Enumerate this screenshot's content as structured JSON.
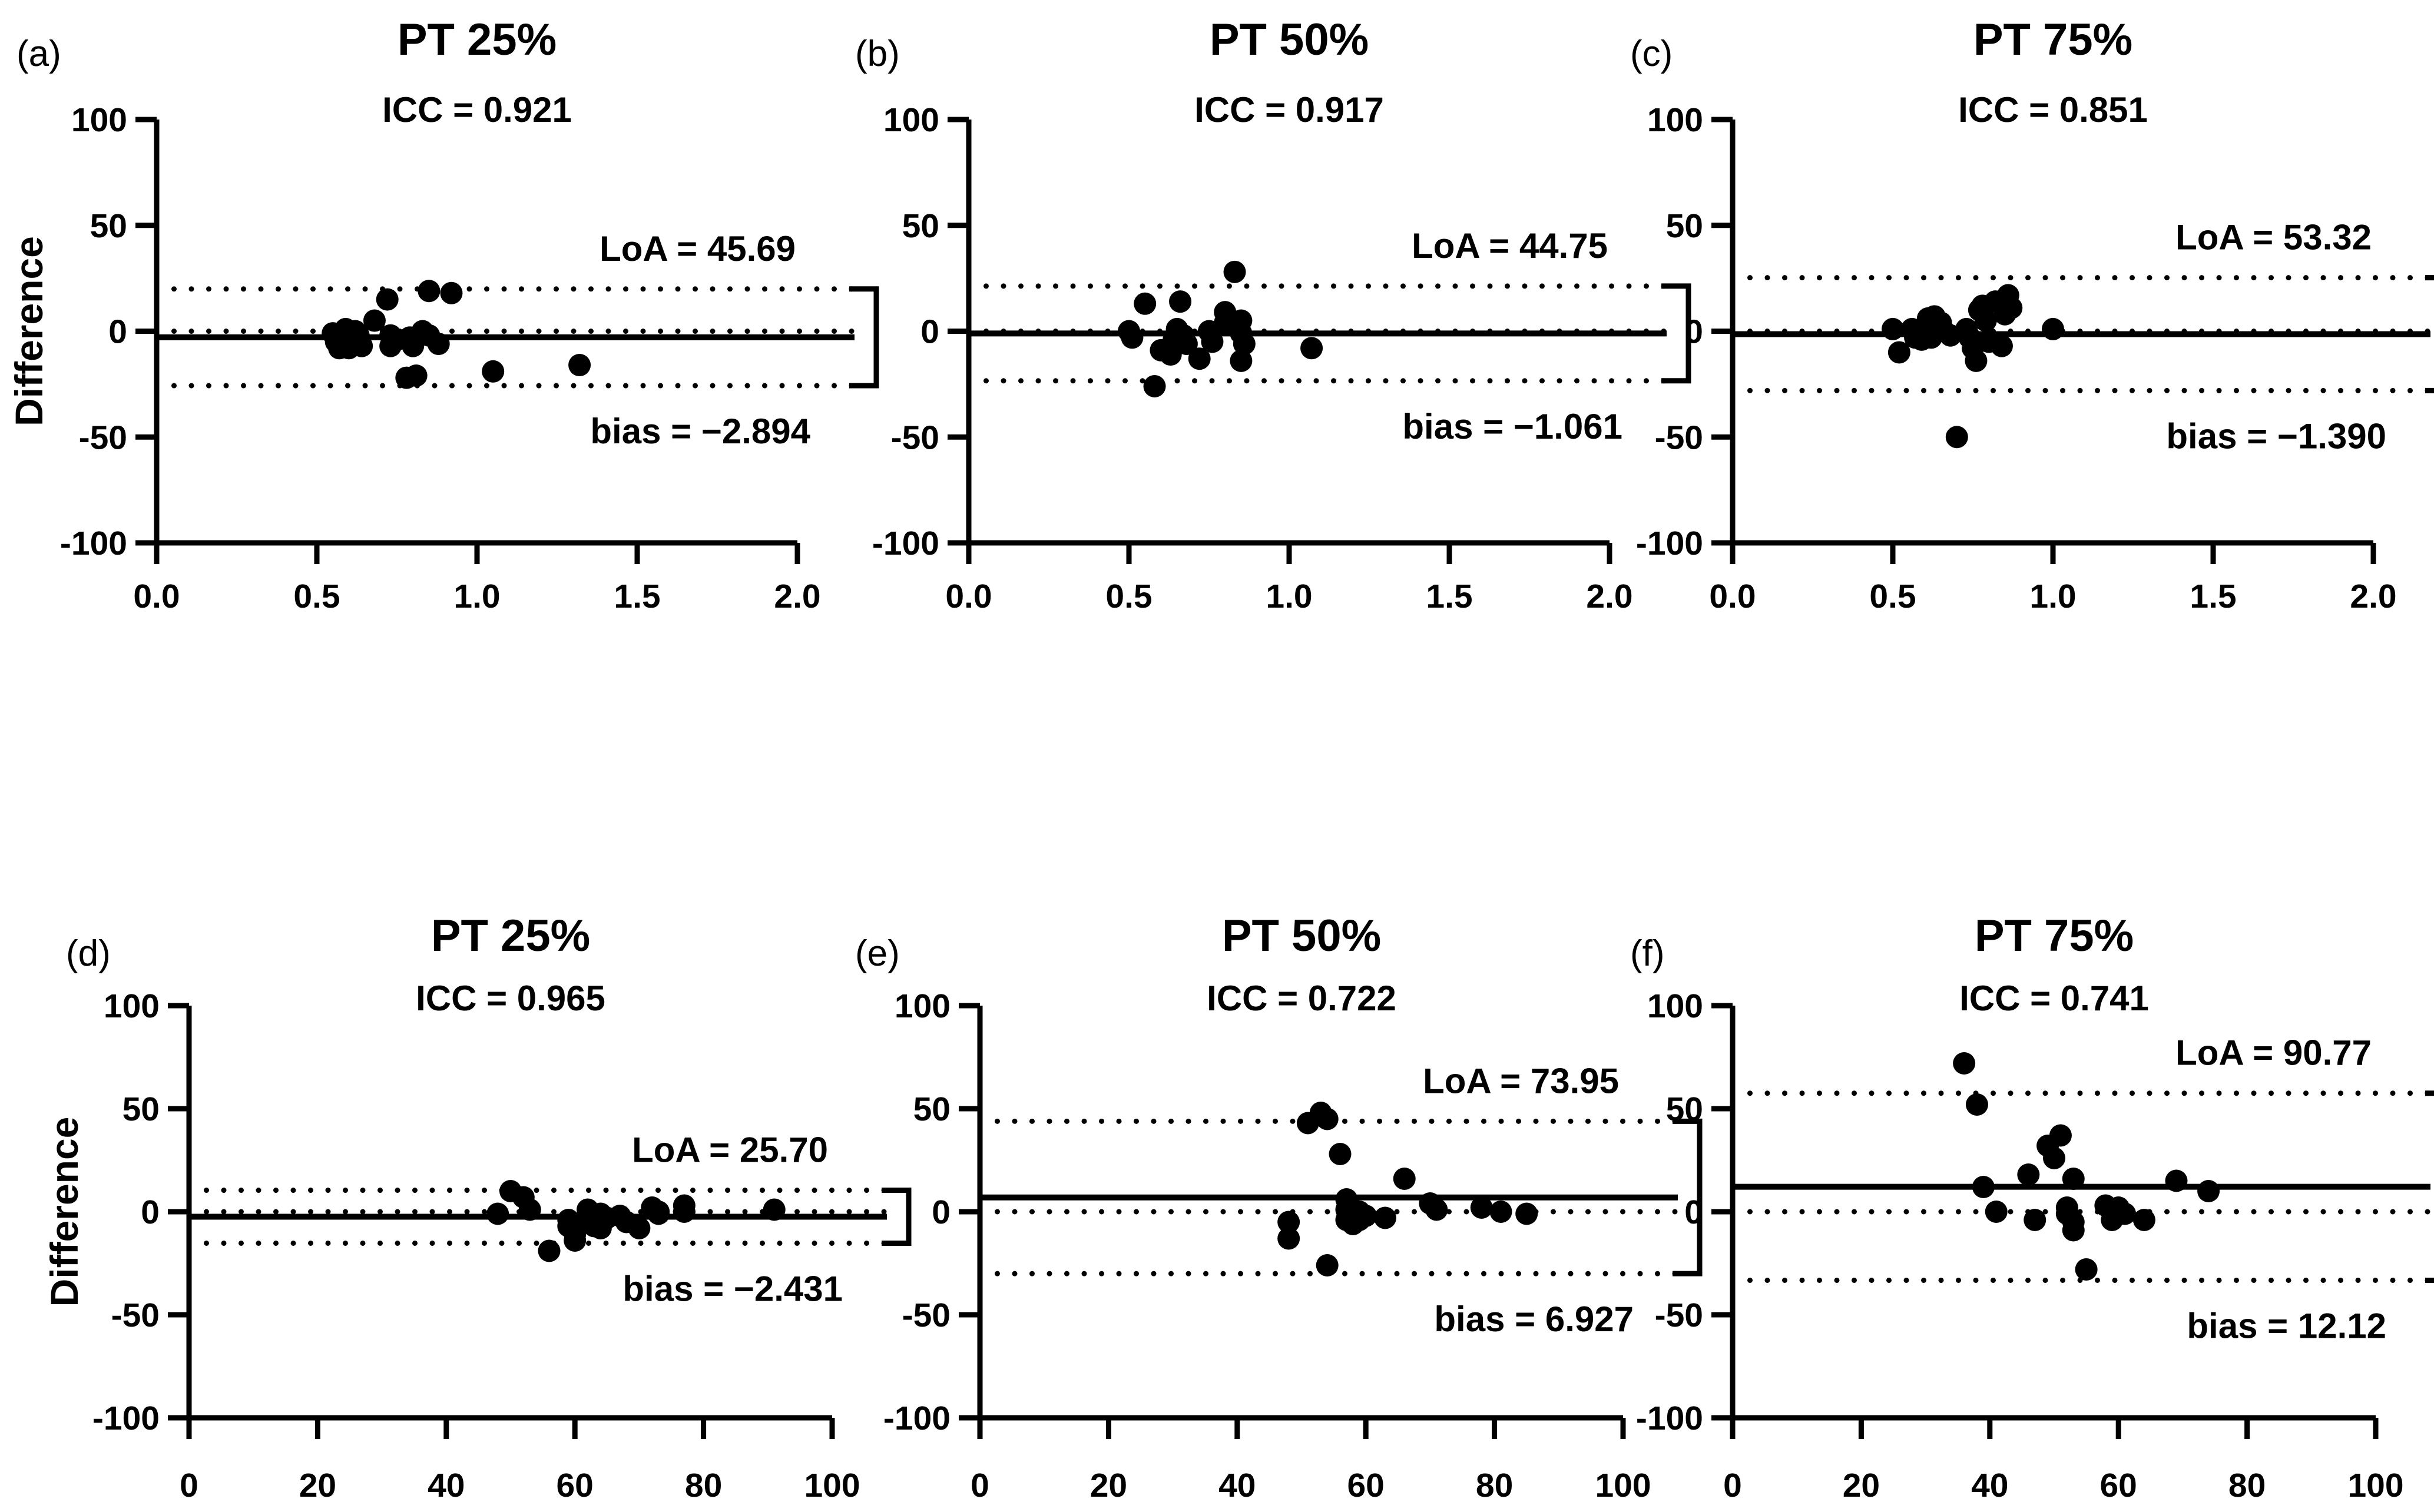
{
  "figure": {
    "background": "#ffffff",
    "ink": "#000000",
    "ylabel": "Difference"
  },
  "chart_data": [
    {
      "type": "scatter",
      "panel_label": "(a)",
      "title": "PT 25%",
      "icc_text": "ICC = 0.921",
      "loa_text": "LoA = 45.69",
      "bias_text": "bias = −2.894",
      "row": 0,
      "col": 0,
      "xlim": [
        0.0,
        2.0
      ],
      "ylim": [
        -100,
        100
      ],
      "x_ticks": [
        "0.0",
        "0.5",
        "1.0",
        "1.5",
        "2.0"
      ],
      "y_ticks": [
        "100",
        "50",
        "0",
        "-50",
        "-100"
      ],
      "ylabel": "Difference",
      "show_ylabel": true,
      "bias_value": -2.894,
      "upper_loa": 19.95,
      "lower_loa": -25.74,
      "zero_line": 0,
      "points": [
        [
          0.55,
          -1
        ],
        [
          0.56,
          -5
        ],
        [
          0.57,
          -8
        ],
        [
          0.59,
          1
        ],
        [
          0.6,
          -3
        ],
        [
          0.6,
          -8
        ],
        [
          0.62,
          0
        ],
        [
          0.63,
          -2
        ],
        [
          0.64,
          -7
        ],
        [
          0.68,
          5
        ],
        [
          0.72,
          15
        ],
        [
          0.73,
          -2
        ],
        [
          0.73,
          -7
        ],
        [
          0.75,
          -4
        ],
        [
          0.78,
          -22
        ],
        [
          0.81,
          -21
        ],
        [
          0.79,
          -3
        ],
        [
          0.8,
          -7
        ],
        [
          0.83,
          0
        ],
        [
          0.85,
          19
        ],
        [
          0.85,
          -2
        ],
        [
          0.88,
          -6
        ],
        [
          0.92,
          18
        ],
        [
          1.05,
          -19
        ],
        [
          1.32,
          -16
        ]
      ]
    },
    {
      "type": "scatter",
      "panel_label": "(b)",
      "title": "PT 50%",
      "icc_text": "ICC = 0.917",
      "loa_text": "LoA = 44.75",
      "bias_text": "bias = −1.061",
      "row": 0,
      "col": 1,
      "xlim": [
        0.0,
        2.0
      ],
      "ylim": [
        -100,
        100
      ],
      "x_ticks": [
        "0.0",
        "0.5",
        "1.0",
        "1.5",
        "2.0"
      ],
      "y_ticks": [
        "100",
        "50",
        "0",
        "-50",
        "-100"
      ],
      "ylabel": "",
      "show_ylabel": false,
      "bias_value": -1.061,
      "upper_loa": 21.31,
      "lower_loa": -23.44,
      "zero_line": 0,
      "points": [
        [
          0.5,
          0
        ],
        [
          0.51,
          -3
        ],
        [
          0.55,
          13
        ],
        [
          0.58,
          -26
        ],
        [
          0.6,
          -9
        ],
        [
          0.63,
          -11
        ],
        [
          0.64,
          -4
        ],
        [
          0.65,
          1
        ],
        [
          0.66,
          14
        ],
        [
          0.67,
          -2
        ],
        [
          0.68,
          -6
        ],
        [
          0.72,
          -13
        ],
        [
          0.75,
          0
        ],
        [
          0.76,
          -5
        ],
        [
          0.8,
          9
        ],
        [
          0.8,
          4
        ],
        [
          0.83,
          28
        ],
        [
          0.85,
          5
        ],
        [
          0.85,
          -1
        ],
        [
          0.85,
          -14
        ],
        [
          0.86,
          -6
        ],
        [
          1.07,
          -8
        ]
      ]
    },
    {
      "type": "scatter",
      "panel_label": "(c)",
      "title": "PT 75%",
      "icc_text": "ICC = 0.851",
      "loa_text": "LoA = 53.32",
      "bias_text": "bias = −1.390",
      "row": 0,
      "col": 2,
      "xlim": [
        0.0,
        2.0
      ],
      "ylim": [
        -100,
        100
      ],
      "x_ticks": [
        "0.0",
        "0.5",
        "1.0",
        "1.5",
        "2.0"
      ],
      "y_ticks": [
        "100",
        "50",
        "0",
        "-50",
        "-100"
      ],
      "ylabel": "",
      "show_ylabel": false,
      "bias_value": -1.39,
      "upper_loa": 25.27,
      "lower_loa": -28.05,
      "zero_line": 0,
      "points": [
        [
          0.5,
          1
        ],
        [
          0.52,
          -10
        ],
        [
          0.56,
          1
        ],
        [
          0.57,
          -3
        ],
        [
          0.59,
          -4
        ],
        [
          0.61,
          6
        ],
        [
          0.62,
          -3
        ],
        [
          0.63,
          7
        ],
        [
          0.65,
          4
        ],
        [
          0.66,
          0
        ],
        [
          0.68,
          -2
        ],
        [
          0.7,
          -50
        ],
        [
          0.73,
          1
        ],
        [
          0.74,
          -3
        ],
        [
          0.75,
          -8
        ],
        [
          0.76,
          -14
        ],
        [
          0.77,
          10
        ],
        [
          0.78,
          12
        ],
        [
          0.79,
          5
        ],
        [
          0.8,
          -5
        ],
        [
          0.82,
          14
        ],
        [
          0.84,
          -7
        ],
        [
          0.85,
          8
        ],
        [
          0.86,
          17
        ],
        [
          0.87,
          11
        ],
        [
          1.0,
          1
        ]
      ]
    },
    {
      "type": "scatter",
      "panel_label": "(d)",
      "title": "PT 25%",
      "icc_text": "ICC = 0.965",
      "loa_text": "LoA = 25.70",
      "bias_text": "bias = −2.431",
      "row": 1,
      "col": 0,
      "xlim": [
        0,
        100
      ],
      "ylim": [
        -100,
        100
      ],
      "x_ticks": [
        "0",
        "20",
        "40",
        "60",
        "80",
        "100"
      ],
      "y_ticks": [
        "100",
        "50",
        "0",
        "-50",
        "-100"
      ],
      "ylabel": "Difference",
      "show_ylabel": true,
      "bias_value": -2.431,
      "upper_loa": 10.42,
      "lower_loa": -15.28,
      "zero_line": 0,
      "points": [
        [
          48,
          -1
        ],
        [
          50,
          10
        ],
        [
          52,
          7
        ],
        [
          53,
          1
        ],
        [
          56,
          -19
        ],
        [
          59,
          -7
        ],
        [
          59,
          -4
        ],
        [
          60,
          -11
        ],
        [
          60,
          -14
        ],
        [
          62,
          1
        ],
        [
          62,
          -3
        ],
        [
          63,
          -7
        ],
        [
          64,
          -8
        ],
        [
          64,
          -1
        ],
        [
          65,
          -3
        ],
        [
          67,
          -2
        ],
        [
          68,
          -5
        ],
        [
          70,
          -8
        ],
        [
          72,
          2
        ],
        [
          73,
          0
        ],
        [
          73,
          -1
        ],
        [
          77,
          3
        ],
        [
          77,
          0
        ],
        [
          91,
          1
        ]
      ]
    },
    {
      "type": "scatter",
      "panel_label": "(e)",
      "title": "PT 50%",
      "icc_text": "ICC = 0.722",
      "loa_text": "LoA = 73.95",
      "bias_text": "bias = 6.927",
      "row": 1,
      "col": 1,
      "xlim": [
        0,
        100
      ],
      "ylim": [
        -100,
        100
      ],
      "x_ticks": [
        "0",
        "20",
        "40",
        "60",
        "80",
        "100"
      ],
      "y_ticks": [
        "100",
        "50",
        "0",
        "-50",
        "-100"
      ],
      "ylabel": "",
      "show_ylabel": false,
      "bias_value": 6.927,
      "upper_loa": 43.9,
      "lower_loa": -30.05,
      "zero_line": 0,
      "points": [
        [
          48,
          -5
        ],
        [
          48,
          -13
        ],
        [
          51,
          43
        ],
        [
          53,
          48
        ],
        [
          54,
          45
        ],
        [
          54,
          -26
        ],
        [
          56,
          28
        ],
        [
          57,
          6
        ],
        [
          57,
          1
        ],
        [
          57,
          -4
        ],
        [
          58,
          -6
        ],
        [
          58,
          1
        ],
        [
          59,
          0
        ],
        [
          59,
          -4
        ],
        [
          60,
          -2
        ],
        [
          63,
          -3
        ],
        [
          66,
          16
        ],
        [
          70,
          4
        ],
        [
          71,
          1
        ],
        [
          78,
          2
        ],
        [
          81,
          0
        ],
        [
          85,
          -1
        ]
      ]
    },
    {
      "type": "scatter",
      "panel_label": "(f)",
      "title": "PT 75%",
      "icc_text": "ICC = 0.741",
      "loa_text": "LoA = 90.77",
      "bias_text": "bias = 12.12",
      "row": 1,
      "col": 2,
      "xlim": [
        0,
        100
      ],
      "ylim": [
        -100,
        100
      ],
      "x_ticks": [
        "0",
        "20",
        "40",
        "60",
        "80",
        "100"
      ],
      "y_ticks": [
        "100",
        "50",
        "0",
        "-50",
        "-100"
      ],
      "ylabel": "",
      "show_ylabel": false,
      "bias_value": 12.12,
      "upper_loa": 57.51,
      "lower_loa": -33.27,
      "zero_line": 0,
      "points": [
        [
          36,
          72
        ],
        [
          38,
          52
        ],
        [
          39,
          12
        ],
        [
          41,
          0
        ],
        [
          46,
          18
        ],
        [
          47,
          -4
        ],
        [
          49,
          32
        ],
        [
          50,
          26
        ],
        [
          51,
          37
        ],
        [
          52,
          2
        ],
        [
          52,
          -1
        ],
        [
          53,
          16
        ],
        [
          53,
          -5
        ],
        [
          53,
          -9
        ],
        [
          55,
          -28
        ],
        [
          58,
          3
        ],
        [
          59,
          1
        ],
        [
          59,
          -4
        ],
        [
          60,
          2
        ],
        [
          61,
          -1
        ],
        [
          64,
          -4
        ],
        [
          69,
          15
        ],
        [
          74,
          10
        ]
      ]
    }
  ]
}
